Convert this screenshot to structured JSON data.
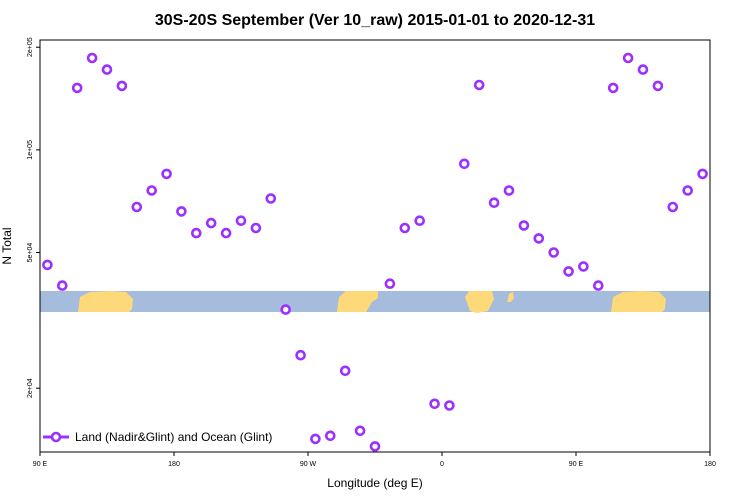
{
  "chart_data": {
    "type": "scatter",
    "title": "30S-20S September (Ver 10_raw)   2015-01-01 to 2020-12-31",
    "xlabel": "Longitude (deg E)",
    "ylabel": "N Total",
    "x_scale": "linear",
    "y_scale": "log",
    "xlim": [
      90,
      540
    ],
    "ylim": [
      13000,
      210000
    ],
    "x_ticks": [
      {
        "value": 90,
        "label": "90 E"
      },
      {
        "value": 180,
        "label": "180"
      },
      {
        "value": 270,
        "label": "90 W"
      },
      {
        "value": 360,
        "label": "0"
      },
      {
        "value": 450,
        "label": "90 E"
      },
      {
        "value": 540,
        "label": "180"
      }
    ],
    "y_ticks": [
      {
        "value": 20000,
        "label": "2e+04"
      },
      {
        "value": 50000,
        "label": "5e+04"
      },
      {
        "value": 100000,
        "label": "1e+05"
      },
      {
        "value": 200000,
        "label": "2e+05"
      }
    ],
    "legend": {
      "position": "bottom-left"
    },
    "series": [
      {
        "name": "Land (Nadir&Glint) and Ocean (Glint)",
        "color": "#9b30ff",
        "marker": "circle-open",
        "x": [
          95,
          105,
          115,
          125,
          135,
          145,
          155,
          165,
          175,
          185,
          195,
          205,
          215,
          225,
          235,
          245,
          255,
          265,
          275,
          285,
          295,
          305,
          315,
          325,
          335,
          345,
          355,
          365,
          375,
          385,
          395,
          405,
          415,
          425,
          435,
          445,
          455,
          465,
          475,
          485,
          495,
          505,
          515,
          525,
          535
        ],
        "y": [
          46000,
          40000,
          152000,
          186000,
          172000,
          154000,
          68000,
          76000,
          85000,
          66000,
          57000,
          61000,
          57000,
          62000,
          59000,
          72000,
          34000,
          25000,
          14200,
          14500,
          22500,
          15000,
          13500,
          40500,
          59000,
          62000,
          18000,
          17800,
          91000,
          155000,
          70000,
          76000,
          60000,
          55000,
          50000,
          44000,
          45500,
          40000,
          152000,
          186000,
          172000,
          154000,
          68000,
          76000,
          85000
        ]
      }
    ]
  }
}
